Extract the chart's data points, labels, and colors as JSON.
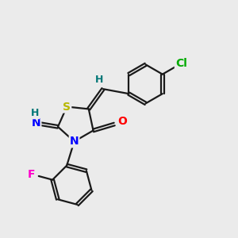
{
  "background_color": "#ebebeb",
  "bond_color": "#1a1a1a",
  "atom_colors": {
    "S": "#b8b800",
    "N": "#0000ff",
    "O": "#ff0000",
    "F": "#ff00cc",
    "Cl": "#00aa00",
    "H": "#007777",
    "C": "#1a1a1a"
  },
  "line_width": 1.6,
  "font_size": 10
}
